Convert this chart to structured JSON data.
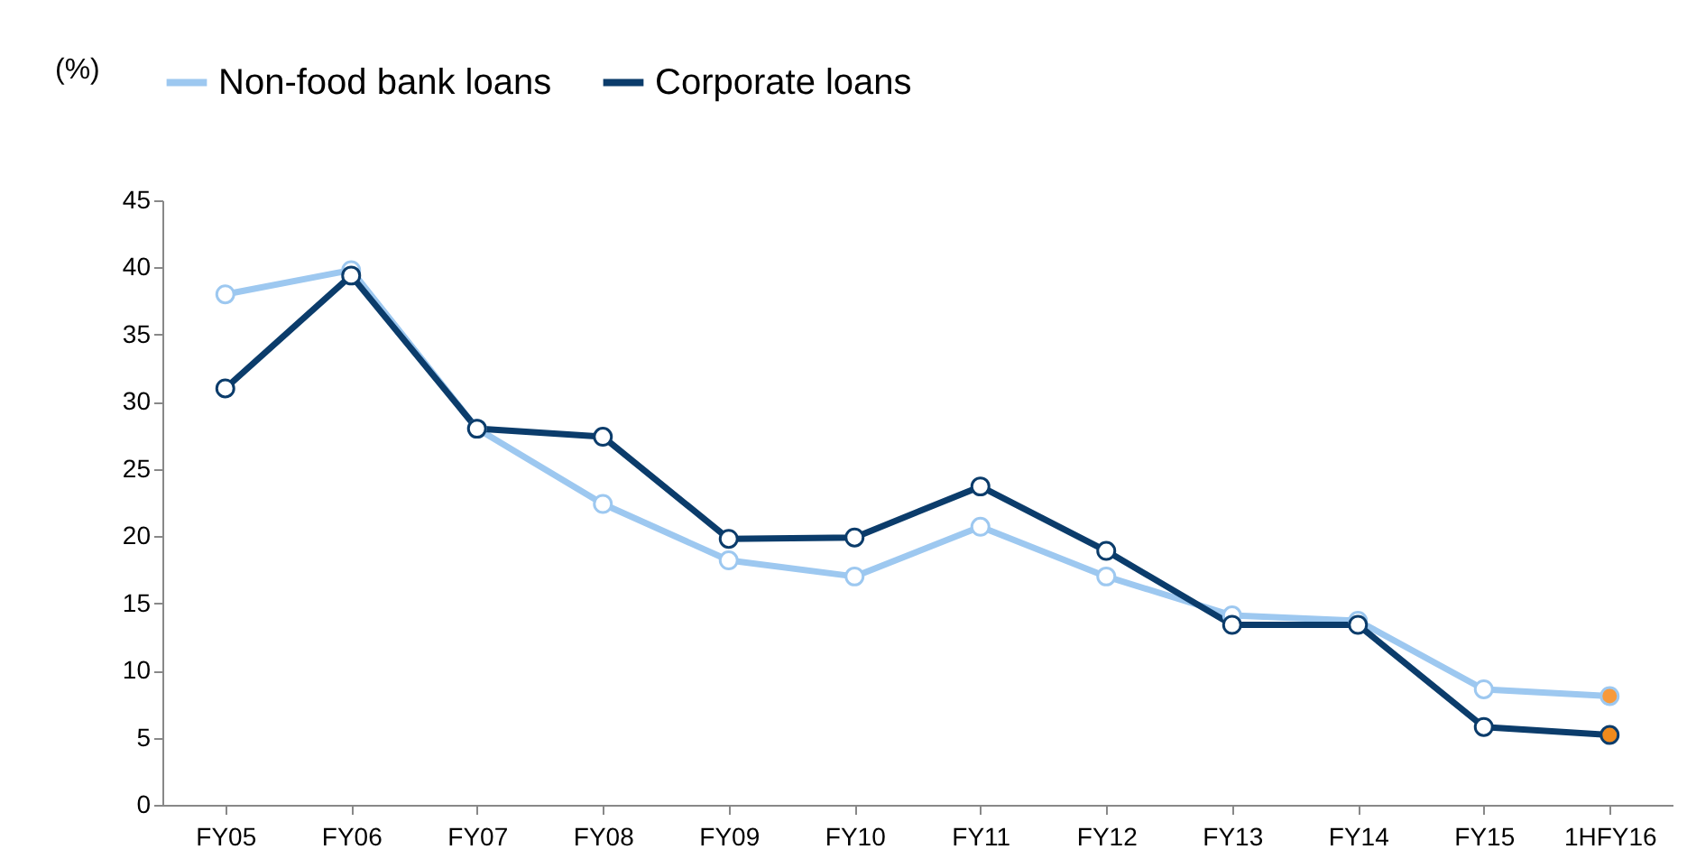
{
  "chart_data": {
    "type": "line",
    "ylabel": "(%)",
    "categories": [
      "FY05",
      "FY06",
      "FY07",
      "FY08",
      "FY09",
      "FY10",
      "FY11",
      "FY12",
      "FY13",
      "FY14",
      "FY15",
      "1HFY16"
    ],
    "series": [
      {
        "name": "Non-food bank loans",
        "color": "#9dc8f0",
        "values": [
          38,
          39.8,
          28,
          22.4,
          18.2,
          17,
          20.7,
          17,
          14.1,
          13.7,
          8.6,
          8.1
        ],
        "colors": [
          "#ffffff",
          "#ffffff",
          "#ffffff",
          "#ffffff",
          "#ffffff",
          "#ffffff",
          "#ffffff",
          "#ffffff",
          "#ffffff",
          "#ffffff",
          "#ffffff",
          "#f79a3c"
        ]
      },
      {
        "name": "Corporate loans",
        "color": "#0b3c6b",
        "values": [
          31,
          39.4,
          28,
          27.4,
          19.8,
          19.9,
          23.7,
          18.9,
          13.4,
          13.4,
          5.8,
          5.2
        ],
        "colors": [
          "#ffffff",
          "#ffffff",
          "#ffffff",
          "#ffffff",
          "#ffffff",
          "#ffffff",
          "#ffffff",
          "#ffffff",
          "#ffffff",
          "#ffffff",
          "#ffffff",
          "#f08a1c"
        ]
      }
    ],
    "ylim": [
      0,
      45
    ],
    "yticks": [
      0,
      5,
      10,
      15,
      20,
      25,
      30,
      35,
      40,
      45
    ],
    "grid": false,
    "legend": "top",
    "marker": "circle",
    "line_style": "solid"
  }
}
